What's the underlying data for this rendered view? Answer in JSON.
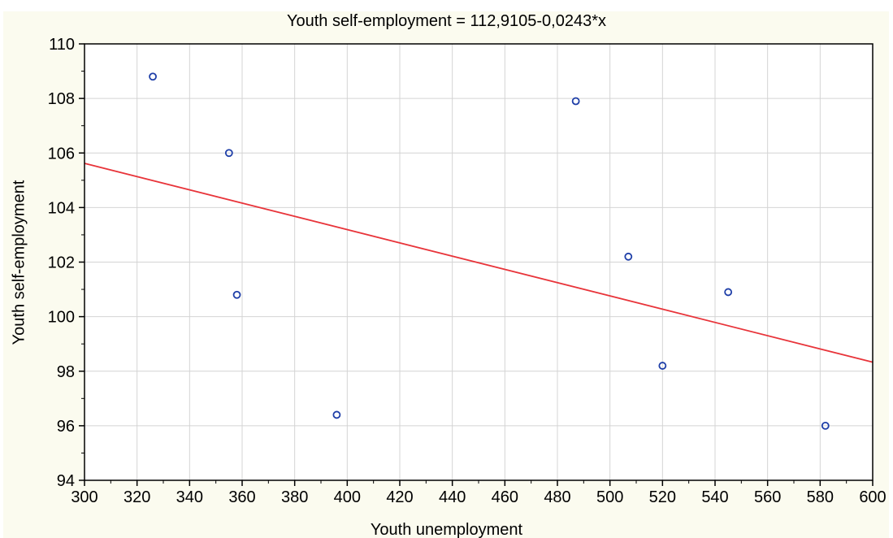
{
  "chart_data": {
    "type": "scatter",
    "title": "Youth self-employment  = 112,9105-0,0243*x",
    "xlabel": "Youth unemployment",
    "ylabel": "Youth self-employment",
    "xlim": [
      300,
      600
    ],
    "ylim": [
      94,
      110
    ],
    "xticks": [
      "300",
      "320",
      "340",
      "360",
      "380",
      "400",
      "420",
      "440",
      "460",
      "480",
      "500",
      "520",
      "540",
      "560",
      "580",
      "600"
    ],
    "yticks": [
      "94",
      "96",
      "98",
      "100",
      "102",
      "104",
      "106",
      "108",
      "110"
    ],
    "grid": true,
    "series": [
      {
        "points": [
          {
            "x": 326,
            "y": 108.8
          },
          {
            "x": 355,
            "y": 106.0
          },
          {
            "x": 358,
            "y": 100.8
          },
          {
            "x": 396,
            "y": 96.4
          },
          {
            "x": 487,
            "y": 107.9
          },
          {
            "x": 507,
            "y": 102.2
          },
          {
            "x": 520,
            "y": 98.2
          },
          {
            "x": 545,
            "y": 100.9
          },
          {
            "x": 582,
            "y": 96.0
          }
        ]
      }
    ],
    "regression": {
      "intercept": 112.9105,
      "slope": -0.0243
    },
    "colors": {
      "background": "#fbfbef",
      "plot_area": "#ffffff",
      "grid": "#d4d4d4",
      "marker": "#1f3fa8",
      "fit_line": "#e8343a",
      "axis": "#000000"
    }
  }
}
